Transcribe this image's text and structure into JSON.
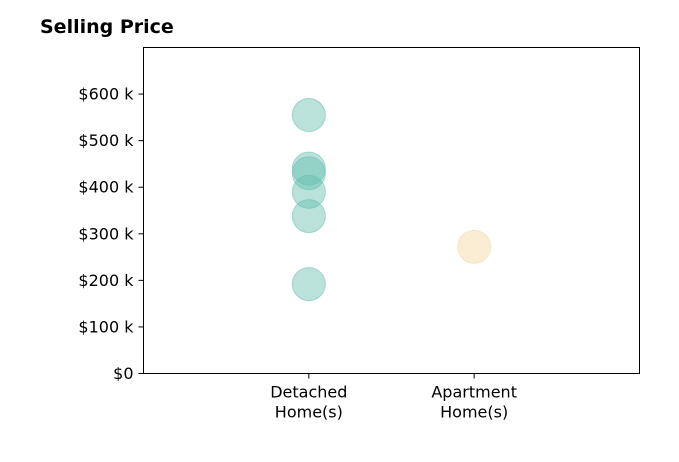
{
  "chart_data": {
    "type": "scatter",
    "title": "Selling Price",
    "xlabel": "",
    "ylabel": "",
    "categories": [
      [
        "Detached",
        "Home(s)"
      ],
      [
        "Apartment",
        "Home(s)"
      ]
    ],
    "xlim": [
      0,
      3
    ],
    "ylim": [
      0,
      700000
    ],
    "yticks": [
      0,
      100000,
      200000,
      300000,
      400000,
      500000,
      600000
    ],
    "ytick_labels": [
      "$0",
      "$100 k",
      "$200 k",
      "$300 k",
      "$400 k",
      "$500 k",
      "$600 k"
    ],
    "grid": false,
    "series": [
      {
        "category_index": 0,
        "color": "#66bfb0",
        "values": [
          555000,
          440000,
          430000,
          390000,
          338000,
          192000
        ]
      },
      {
        "category_index": 1,
        "color": "#f2d9a0",
        "values": [
          272000
        ]
      }
    ]
  }
}
